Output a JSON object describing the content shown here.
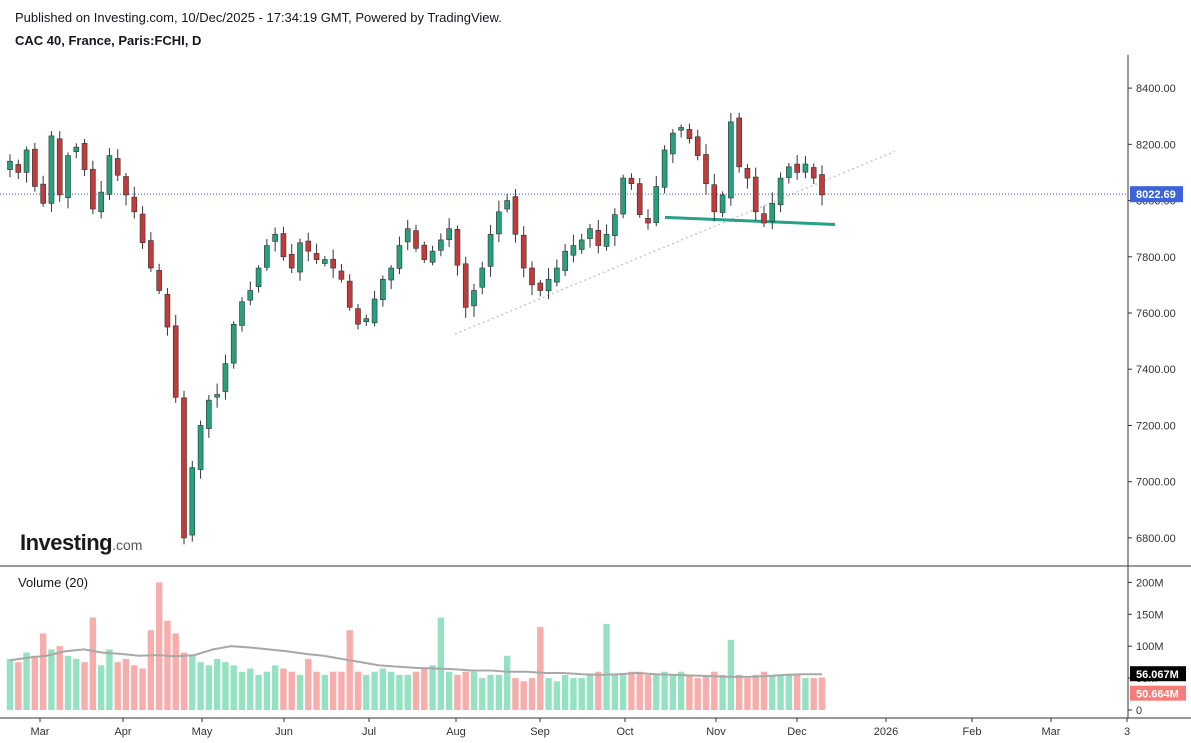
{
  "header": {
    "published": "Published on Investing.com, 10/Dec/2025 - 17:34:19 GMT, Powered by TradingView.",
    "symbol": "CAC 40, France, Paris:FCHI, D"
  },
  "logo": {
    "main": "Investing",
    "suffix": ".com"
  },
  "colors": {
    "up": "#26a17b",
    "down": "#c23b3b",
    "vol_up": "#8fe0bf",
    "vol_down": "#f7a9a7",
    "vol_ma": "#a8a8a8",
    "price_line": "#3c5bd4",
    "support": "#26a08a",
    "trend": "#c8c8c8",
    "last_label": "#3d63d8",
    "vol_ma_label": "#000000",
    "vol_label": "#f47d7a"
  },
  "chart_data": [
    {
      "type": "candlestick",
      "title": "CAC 40, France, Paris:FCHI, D",
      "ylim": [
        6700,
        8500
      ],
      "y_ticks": [
        "8400.00",
        "8200.00",
        "8000.00",
        "7800.00",
        "7600.00",
        "7400.00",
        "7200.00",
        "7000.00",
        "6800.00"
      ],
      "x_ticks": [
        "Mar",
        "Apr",
        "May",
        "Jun",
        "Jul",
        "Aug",
        "Sep",
        "Oct",
        "Nov",
        "Dec",
        "2026",
        "Feb",
        "Mar",
        "3"
      ],
      "last_price": "8022.69",
      "closes_approx": [
        8140,
        8100,
        8180,
        8050,
        7990,
        8230,
        8020,
        8160,
        8190,
        8110,
        7970,
        8030,
        8160,
        8090,
        8020,
        7960,
        7850,
        7760,
        7680,
        7550,
        7300,
        6800,
        7050,
        7200,
        7290,
        7310,
        7420,
        7560,
        7640,
        7680,
        7760,
        7840,
        7880,
        7800,
        7760,
        7850,
        7820,
        7790,
        7790,
        7760,
        7720,
        7620,
        7560,
        7580,
        7650,
        7720,
        7760,
        7840,
        7900,
        7830,
        7790,
        7820,
        7860,
        7900,
        7770,
        7620,
        7680,
        7760,
        7880,
        7960,
        8000,
        7880,
        7760,
        7700,
        7680,
        7720,
        7760,
        7820,
        7840,
        7860,
        7900,
        7840,
        7880,
        7950,
        8080,
        8060,
        7950,
        7920,
        8050,
        8180,
        8240,
        8260,
        8220,
        8160,
        8060,
        7960,
        8020,
        8280,
        8120,
        8080,
        7960,
        7920,
        7990,
        8080,
        8120,
        8100,
        8130,
        8080,
        8020
      ],
      "support_line": [
        7940,
        7915
      ],
      "trend_line": [
        7525,
        8175
      ]
    },
    {
      "type": "bar",
      "title": "Volume (20)",
      "ylim": [
        0,
        210
      ],
      "y_ticks": [
        "200M",
        "150M",
        "100M",
        "50M",
        "0"
      ],
      "unit": "M",
      "ma_last": "56.067M",
      "volume_last": "50.664M",
      "volumes_approx": [
        80,
        75,
        90,
        85,
        120,
        95,
        100,
        85,
        80,
        75,
        145,
        70,
        95,
        75,
        80,
        70,
        65,
        125,
        200,
        140,
        120,
        90,
        85,
        75,
        70,
        80,
        75,
        70,
        60,
        65,
        55,
        60,
        70,
        65,
        60,
        55,
        80,
        60,
        55,
        60,
        60,
        125,
        60,
        55,
        60,
        65,
        60,
        55,
        55,
        60,
        65,
        70,
        145,
        60,
        55,
        60,
        60,
        50,
        55,
        55,
        85,
        50,
        45,
        50,
        130,
        50,
        45,
        55,
        50,
        50,
        55,
        60,
        135,
        55,
        55,
        60,
        60,
        55,
        55,
        60,
        55,
        60,
        55,
        50,
        55,
        60,
        55,
        110,
        55,
        50,
        55,
        60,
        55,
        55,
        55,
        55,
        50,
        50,
        51
      ],
      "ma_approx": [
        78,
        82,
        85,
        92,
        95,
        90,
        88,
        85,
        86,
        84,
        86,
        95,
        100,
        98,
        95,
        92,
        88,
        85,
        80,
        75,
        70,
        68,
        66,
        65,
        64,
        62,
        62,
        60,
        60,
        58,
        58,
        56,
        55,
        56,
        58,
        56,
        55,
        54,
        53,
        52,
        52,
        53,
        55,
        56,
        56
      ]
    }
  ]
}
